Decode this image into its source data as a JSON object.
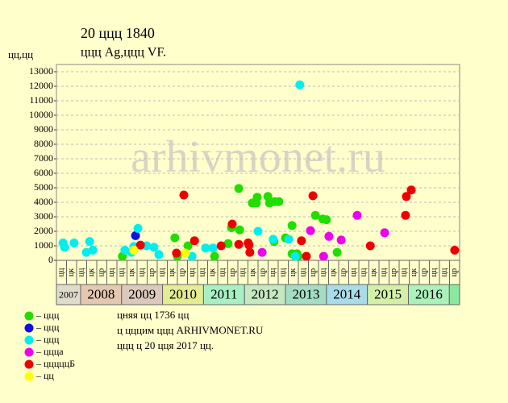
{
  "chart_data": {
    "type": "scatter",
    "title": "20 ццц 1840",
    "subtitle": "ццц Ag,ццц VF.",
    "y_label": "цц,цц",
    "watermark": "arhivmonet.ru",
    "xlim": [
      2007.41,
      2017.25
    ],
    "ylim": [
      0,
      13500
    ],
    "yticks": [
      0,
      1000,
      2000,
      3000,
      4000,
      5000,
      6000,
      7000,
      8000,
      9000,
      10000,
      11000,
      12000,
      13000
    ],
    "grid": true,
    "period_labels": [
      "цц",
      "цк",
      "цц",
      "цк",
      "цр",
      "цц",
      "цц",
      "цк",
      "цц",
      "цр",
      "цц",
      "цк",
      "цр",
      "цц",
      "цц",
      "цк",
      "цц",
      "цр",
      "цц",
      "цк",
      "цр",
      "цц",
      "цц",
      "цк",
      "цц",
      "цр",
      "цц",
      "цк",
      "цр",
      "цц",
      "цц",
      "цк",
      "цц",
      "цр",
      "цц",
      "цк",
      "цр",
      "цц",
      "цц",
      "цр"
    ],
    "years": [
      2007,
      2008,
      2009,
      2010,
      2011,
      2012,
      2013,
      2014,
      2015,
      2016,
      null
    ],
    "year_colors": [
      "#e0dccc",
      "#e4c8b0",
      "#dcc8bc",
      "#e4ec94",
      "#a8f0c4",
      "#c4e8c0",
      "#a4dcc4",
      "#a8dce8",
      "#d4f0a8",
      "#acf0bc",
      "#8ce8a0"
    ],
    "series": [
      {
        "name": "– ццц",
        "color": "#22dd00",
        "x": [
          2009.02,
          2010.3,
          2010.36,
          2010.62,
          2011.27,
          2011.6,
          2011.68,
          2011.88,
          2011.86,
          2012.19,
          2012.31,
          2012.29,
          2012.57,
          2012.61,
          2012.74,
          2012.84,
          2012.72,
          2013.0,
          2013.16,
          2013.16,
          2013.28,
          2013.31,
          2013.73,
          2013.91,
          2014.0,
          2014.26
        ],
        "values": [
          280,
          1550,
          280,
          1000,
          280,
          1150,
          2250,
          2100,
          4950,
          3950,
          4350,
          3950,
          4400,
          3950,
          4050,
          4050,
          1300,
          1550,
          2400,
          450,
          450,
          280,
          3100,
          2850,
          2800,
          550
        ]
      },
      {
        "name": "– ццц",
        "color": "#1010e0",
        "x": [
          2009.34
        ],
        "values": [
          1700
        ]
      },
      {
        "name": "– ццц",
        "color": "#00eeee",
        "x": [
          2007.57,
          2007.61,
          2007.84,
          2008.14,
          2008.22,
          2008.3,
          2009.08,
          2009.24,
          2009.3,
          2009.4,
          2009.61,
          2009.79,
          2009.91,
          2010.72,
          2011.05,
          2011.23,
          2012.33,
          2012.7,
          2013.24,
          2013.35,
          2013.08
        ],
        "values": [
          1200,
          900,
          1200,
          550,
          1300,
          700,
          700,
          550,
          950,
          2200,
          1000,
          900,
          400,
          280,
          850,
          850,
          2000,
          1450,
          280,
          12100,
          1450
        ]
      },
      {
        "name": "– ццца",
        "color": "#ee00ee",
        "x": [
          2012.43,
          2013.61,
          2013.93,
          2014.06,
          2014.36,
          2014.75,
          2015.42
        ],
        "values": [
          550,
          2050,
          280,
          1650,
          1400,
          3100,
          1900
        ]
      },
      {
        "name": "– цццццБ",
        "color": "#ee0000",
        "x": [
          2009.46,
          2010.34,
          2010.52,
          2010.78,
          2011.43,
          2011.7,
          2011.86,
          2012.09,
          2012.13,
          2012.11,
          2013.39,
          2013.51,
          2013.67,
          2015.07,
          2015.93,
          2015.95,
          2016.07,
          2017.13
        ],
        "values": [
          1050,
          500,
          4500,
          1350,
          1000,
          2500,
          1100,
          1200,
          550,
          1050,
          1350,
          280,
          4450,
          1000,
          3100,
          4400,
          4850,
          700
        ]
      },
      {
        "name": "– цц",
        "color": "#ffff00",
        "x": [
          2009.3,
          2010.56
        ],
        "values": [
          700,
          500
        ]
      }
    ],
    "notes": [
      "цняя цц 1736 цц",
      "ц цццим ццц ARHIVMONET.RU",
      "ццц ц 20 цця 2017 цц."
    ]
  }
}
